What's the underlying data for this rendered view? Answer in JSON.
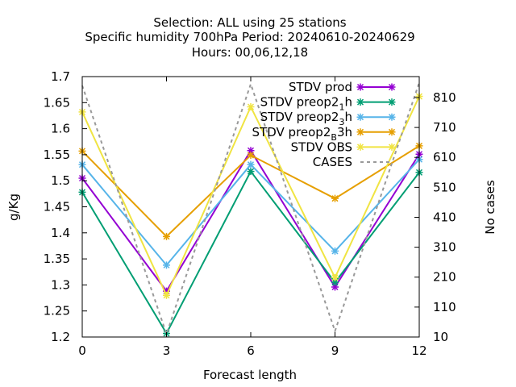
{
  "chart_data": {
    "type": "line",
    "title_lines": [
      "Selection: ALL using    25 stations",
      "Specific humidity 700hPa   Period: 20240610-20240629",
      "Hours:  00,06,12,18"
    ],
    "xlabel": "Forecast length",
    "ylabel": "g/Kg",
    "y2label": "No cases",
    "x": [
      0,
      3,
      6,
      9,
      12
    ],
    "xlim": [
      0,
      12
    ],
    "ylim": [
      1.2,
      1.7
    ],
    "y2lim": [
      10,
      880
    ],
    "x_ticks": [
      0,
      3,
      6,
      9,
      12
    ],
    "y_ticks": [
      1.2,
      1.25,
      1.3,
      1.35,
      1.4,
      1.45,
      1.5,
      1.55,
      1.6,
      1.65,
      1.7
    ],
    "y_tick_labels": [
      "1.2",
      "1.25",
      "1.3",
      "1.35",
      "1.4",
      "1.45",
      "1.5",
      "1.55",
      "1.6",
      "1.65",
      "1.7"
    ],
    "y2_ticks": [
      10,
      110,
      210,
      310,
      410,
      510,
      610,
      710,
      810
    ],
    "grid": false,
    "legend_placement": "top-right",
    "series": [
      {
        "name": "STDV prod",
        "label_main": "STDV prod",
        "label_sub": "",
        "label_after": "",
        "color": "#9400d3",
        "axis": "y",
        "dashed": false,
        "marker": true,
        "values": [
          1.505,
          1.288,
          1.558,
          1.296,
          1.551
        ]
      },
      {
        "name": "STDV preop2 1 h",
        "label_main": "STDV preop2",
        "label_sub": "1",
        "label_after": "h",
        "color": "#009e73",
        "axis": "y",
        "dashed": false,
        "marker": true,
        "values": [
          1.478,
          1.207,
          1.518,
          1.305,
          1.516
        ]
      },
      {
        "name": "STDV preop2 3 h",
        "label_main": "STDV preop2",
        "label_sub": "3",
        "label_after": "h",
        "color": "#56b4e9",
        "axis": "y",
        "dashed": false,
        "marker": true,
        "values": [
          1.531,
          1.338,
          1.531,
          1.365,
          1.541
        ]
      },
      {
        "name": "STDV preop2 B 3h",
        "label_main": "STDV preop2",
        "label_sub": "B",
        "label_after": "3h",
        "color": "#e69f00",
        "axis": "y",
        "dashed": false,
        "marker": true,
        "values": [
          1.557,
          1.393,
          1.549,
          1.466,
          1.567
        ]
      },
      {
        "name": "STDV OBS",
        "label_main": "STDV OBS",
        "label_sub": "",
        "label_after": "",
        "color": "#f0e442",
        "axis": "y",
        "dashed": false,
        "marker": true,
        "values": [
          1.632,
          1.28,
          1.642,
          1.314,
          1.662
        ]
      },
      {
        "name": "CASES",
        "label_main": "CASES",
        "label_sub": "",
        "label_after": "",
        "color": "#999999",
        "axis": "y2",
        "dashed": true,
        "marker": false,
        "values": [
          850,
          20,
          855,
          30,
          860
        ]
      }
    ]
  }
}
